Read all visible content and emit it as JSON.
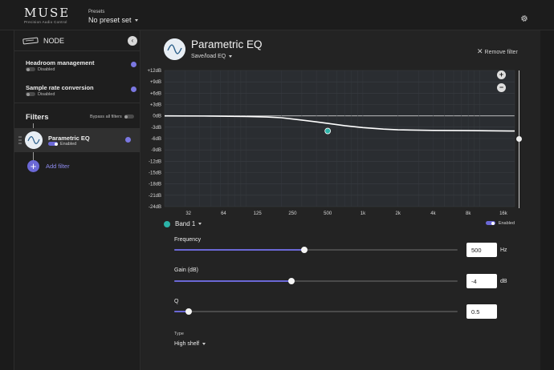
{
  "app": {
    "logo": "MUSE",
    "logo_subtitle": "Precision Audio Control",
    "presets_label": "Presets",
    "presets_value": "No preset set"
  },
  "sidebar": {
    "node_label": "NODE",
    "settings": [
      {
        "title": "Headroom management",
        "status": "Disabled",
        "enabled": false
      },
      {
        "title": "Sample rate conversion",
        "status": "Disabled",
        "enabled": false
      }
    ],
    "filters_title": "Filters",
    "bypass_label": "Bypass all filters",
    "bypass_enabled": false,
    "filters": [
      {
        "name": "Parametric EQ",
        "status": "Enabled",
        "enabled": true
      }
    ],
    "add_filter_label": "Add filter"
  },
  "main": {
    "title": "Parametric EQ",
    "save_load_label": "Save/load EQ",
    "remove_filter_label": "Remove filter",
    "band_label": "Band 1",
    "band_color": "#2bb3a8",
    "band_enabled_label": "Enabled",
    "band_enabled": true,
    "params": {
      "frequency": {
        "label": "Frequency",
        "value": "500",
        "unit": "Hz",
        "level": 0.46
      },
      "gain": {
        "label": "Gain (dB)",
        "value": "-4",
        "unit": "dB",
        "level": 0.415
      },
      "q": {
        "label": "Q",
        "value": "0.5",
        "unit": "",
        "level": 0.05
      }
    },
    "type_label": "Type",
    "type_value": "High shelf"
  },
  "colors": {
    "accent": "#6b68d6",
    "band": "#2bb3a8",
    "background": "#1b1b1b",
    "panel": "#232323"
  },
  "icons": {
    "settings": "gear-icon",
    "node": "device-icon",
    "collapse": "chevron-left-icon",
    "remove": "close-icon",
    "add": "plus-icon",
    "zoom_in": "plus-icon",
    "zoom_out": "minus-icon"
  },
  "chart_data": {
    "type": "line",
    "y_ticks": [
      "+12dB",
      "+9dB",
      "+6dB",
      "+3dB",
      "0dB",
      "-3dB",
      "-6dB",
      "-9dB",
      "-12dB",
      "-15dB",
      "-18dB",
      "-21dB",
      "-24dB"
    ],
    "x_ticks": [
      "32",
      "64",
      "125",
      "250",
      "500",
      "1k",
      "2k",
      "4k",
      "8k",
      "16k"
    ],
    "x_tick_values": [
      32,
      64,
      125,
      250,
      500,
      1000,
      2000,
      4000,
      8000,
      16000
    ],
    "x_scale": "log",
    "xlim": [
      20,
      20000
    ],
    "ylim": [
      -24,
      12
    ],
    "grid": true,
    "series": [
      {
        "x": [
          20,
          50,
          100,
          150,
          200,
          300,
          400,
          500,
          700,
          1000,
          1500,
          2000,
          4000,
          8000,
          20000
        ],
        "y": [
          0,
          -0.05,
          -0.15,
          -0.3,
          -0.5,
          -1.1,
          -1.6,
          -2.0,
          -2.6,
          -3.1,
          -3.5,
          -3.7,
          -3.85,
          -3.9,
          -4.0
        ]
      }
    ],
    "band_point": {
      "x": 500,
      "y": -4
    }
  }
}
